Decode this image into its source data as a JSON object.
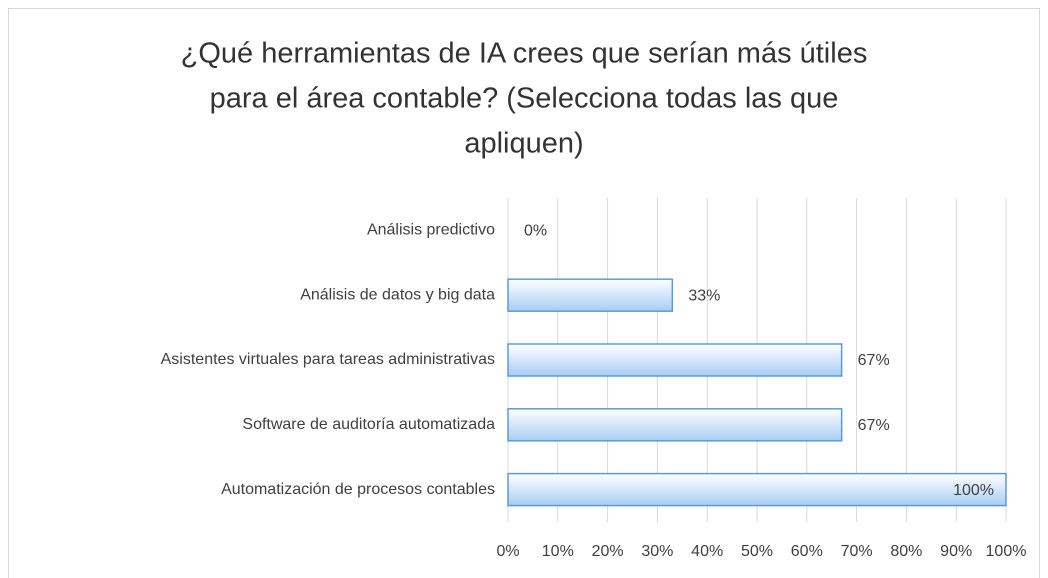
{
  "chart_data": {
    "type": "barh",
    "title": [
      "¿Qué herramientas de IA crees que serían más útiles",
      "para el área contable? (Selecciona todas las que",
      "apliquen)"
    ],
    "categories": [
      "Análisis predictivo",
      "Análisis de datos y big data",
      "Asistentes virtuales para tareas administrativas",
      "Software de auditoría automatizada",
      "Automatización de procesos contables"
    ],
    "values": [
      0,
      33,
      67,
      67,
      100
    ],
    "value_labels": [
      "0%",
      "33%",
      "67%",
      "67%",
      "100%"
    ],
    "color": "#5b9bd5",
    "xlim": [
      0,
      100
    ],
    "xticks": [
      {
        "value": 0,
        "label": "0%"
      },
      {
        "value": 10,
        "label": "10%"
      },
      {
        "value": 20,
        "label": "20%"
      },
      {
        "value": 30,
        "label": "30%"
      },
      {
        "value": 40,
        "label": "40%"
      },
      {
        "value": 50,
        "label": "50%"
      },
      {
        "value": 60,
        "label": "60%"
      },
      {
        "value": 70,
        "label": "70%"
      },
      {
        "value": 80,
        "label": "80%"
      },
      {
        "value": 90,
        "label": "90%"
      },
      {
        "value": 100,
        "label": "100%"
      }
    ],
    "grid": true
  }
}
